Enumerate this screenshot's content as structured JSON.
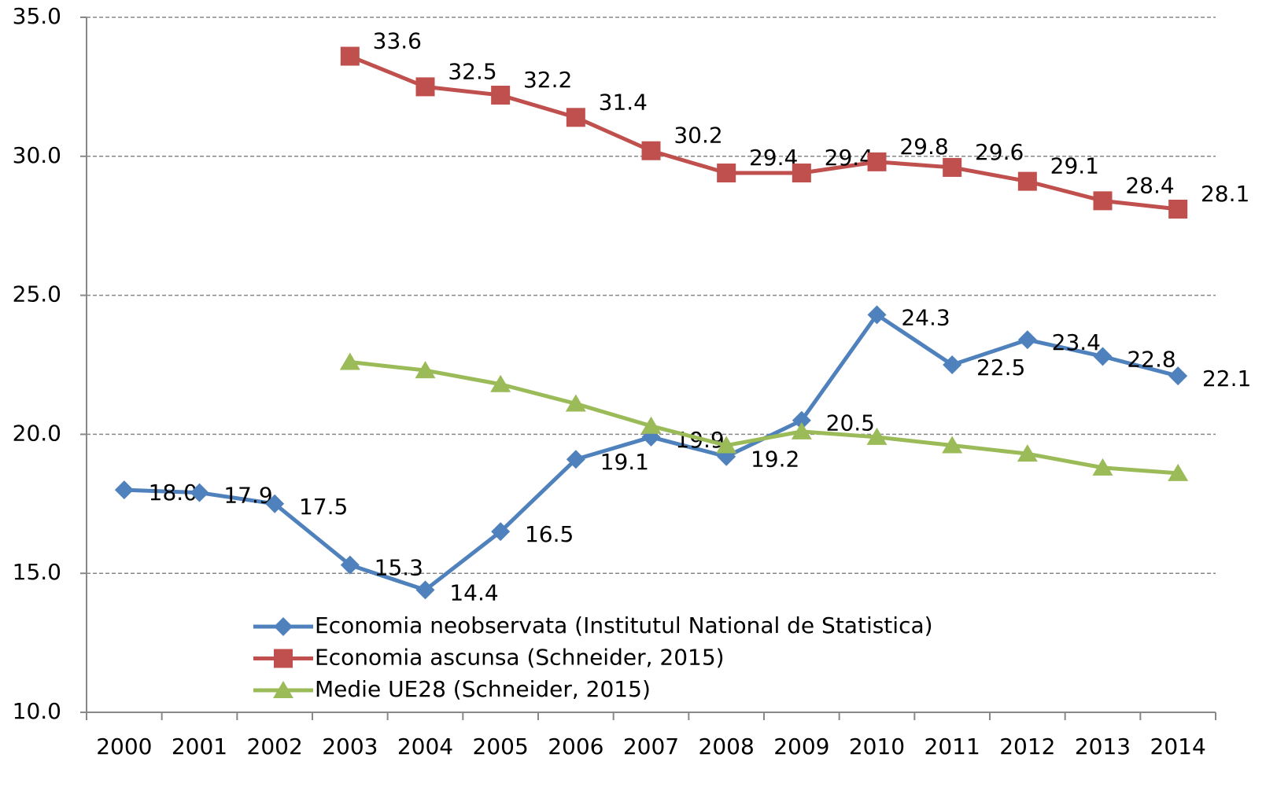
{
  "chart_data": {
    "type": "line",
    "categories": [
      "2000",
      "2001",
      "2002",
      "2003",
      "2004",
      "2005",
      "2006",
      "2007",
      "2008",
      "2009",
      "2010",
      "2011",
      "2012",
      "2013",
      "2014"
    ],
    "series": [
      {
        "name": "Economia neobservata (Institutul National de Statistica)",
        "color": "#4f81bd",
        "marker": "diamond",
        "values": [
          18.0,
          17.9,
          17.5,
          15.3,
          14.4,
          16.5,
          19.1,
          19.9,
          19.2,
          20.5,
          24.3,
          22.5,
          23.4,
          22.8,
          22.1
        ],
        "value_labels": [
          "18.0",
          "17.9",
          "17.5",
          "15.3",
          "14.4",
          "16.5",
          "19.1",
          "19.9",
          "19.2",
          "20.5",
          "24.3",
          "22.5",
          "23.4",
          "22.8",
          "22.1"
        ]
      },
      {
        "name": "Economia ascunsa (Schneider, 2015)",
        "color": "#c0504d",
        "marker": "square",
        "values": [
          null,
          null,
          null,
          33.6,
          32.5,
          32.2,
          31.4,
          30.2,
          29.4,
          29.4,
          29.8,
          29.6,
          29.1,
          28.4,
          28.1
        ],
        "value_labels": [
          null,
          null,
          null,
          "33.6",
          "32.5",
          "32.2",
          "31.4",
          "30.2",
          "29.4",
          "29.4",
          "29.8",
          "29.6",
          "29.1",
          "28.4",
          "28.1"
        ]
      },
      {
        "name": "Medie UE28 (Schneider, 2015)",
        "color": "#9bbb59",
        "marker": "triangle",
        "values": [
          null,
          null,
          null,
          22.6,
          22.3,
          21.8,
          21.1,
          20.3,
          19.6,
          20.1,
          19.9,
          19.6,
          19.3,
          18.8,
          18.6
        ]
      }
    ],
    "ylim": [
      10,
      35
    ],
    "yticks": [
      {
        "value": 10,
        "label": "10.0"
      },
      {
        "value": 15,
        "label": "15.0"
      },
      {
        "value": 20,
        "label": "20.0"
      },
      {
        "value": 25,
        "label": "25.0"
      },
      {
        "value": 30,
        "label": "30.0"
      },
      {
        "value": 35,
        "label": "35.0"
      }
    ],
    "grid": true
  }
}
